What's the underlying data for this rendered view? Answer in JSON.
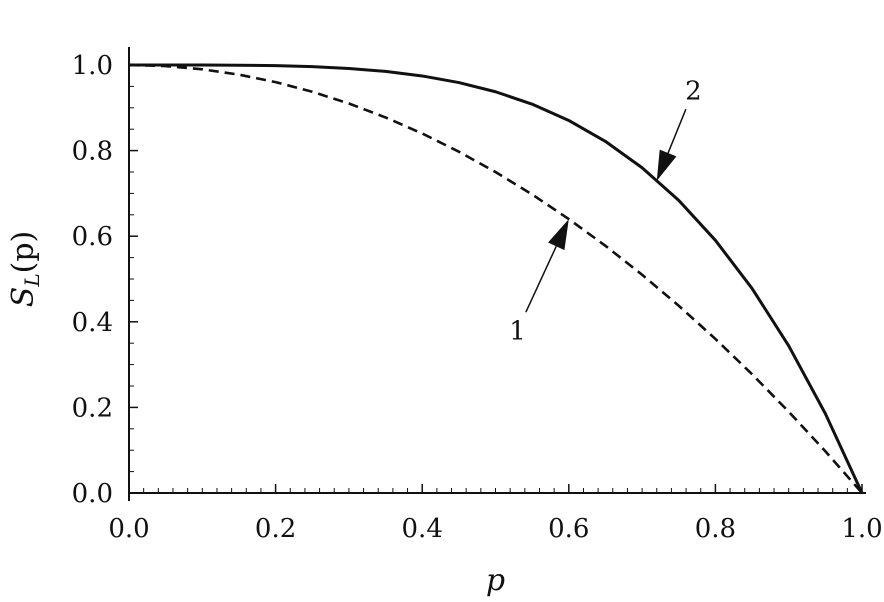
{
  "chart_data": {
    "type": "line",
    "xlabel": "p",
    "ylabel_main": "S",
    "ylabel_sub": "L",
    "ylabel_rest": "(p)",
    "xlim": [
      0.0,
      1.0
    ],
    "ylim": [
      0.0,
      1.0
    ],
    "xticks": [
      "0.0",
      "0.2",
      "0.4",
      "0.6",
      "0.8",
      "1.0"
    ],
    "yticks": [
      "0.0",
      "0.2",
      "0.4",
      "0.6",
      "0.8",
      "1.0"
    ],
    "grid": false,
    "series": [
      {
        "style": "dashed",
        "color": "#111111",
        "x": [
          0.0,
          0.05,
          0.1,
          0.15,
          0.2,
          0.25,
          0.3,
          0.35,
          0.4,
          0.45,
          0.5,
          0.55,
          0.6,
          0.65,
          0.7,
          0.75,
          0.8,
          0.85,
          0.9,
          0.95,
          1.0
        ],
        "y": [
          1.0,
          0.9975,
          0.99,
          0.9775,
          0.96,
          0.9375,
          0.91,
          0.8775,
          0.84,
          0.7975,
          0.75,
          0.6975,
          0.64,
          0.5775,
          0.51,
          0.4375,
          0.36,
          0.2775,
          0.19,
          0.0975,
          0.0
        ]
      },
      {
        "style": "solid",
        "color": "#111111",
        "x": [
          0.0,
          0.05,
          0.1,
          0.15,
          0.2,
          0.25,
          0.3,
          0.35,
          0.4,
          0.45,
          0.5,
          0.55,
          0.6,
          0.65,
          0.7,
          0.75,
          0.8,
          0.85,
          0.9,
          0.95,
          1.0
        ],
        "y": [
          1.0,
          1.0,
          0.9999,
          0.9995,
          0.9984,
          0.9961,
          0.9919,
          0.985,
          0.9744,
          0.959,
          0.9375,
          0.9085,
          0.8704,
          0.8215,
          0.7599,
          0.6836,
          0.5904,
          0.478,
          0.3439,
          0.1855,
          0.0
        ]
      }
    ],
    "annotations": [
      {
        "label": "1",
        "series": 0,
        "at_x": 0.6,
        "text_x": 0.53,
        "text_y": 0.38
      },
      {
        "label": "2",
        "series": 1,
        "at_x": 0.72,
        "text_x": 0.77,
        "text_y": 0.94
      }
    ]
  }
}
